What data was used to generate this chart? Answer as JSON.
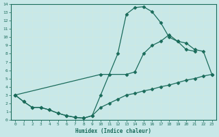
{
  "xlabel": "Humidex (Indice chaleur)",
  "xlim": [
    -0.5,
    23.5
  ],
  "ylim": [
    0,
    14
  ],
  "xticks": [
    0,
    1,
    2,
    3,
    4,
    5,
    6,
    7,
    8,
    9,
    10,
    11,
    12,
    13,
    14,
    15,
    16,
    17,
    18,
    19,
    20,
    21,
    22,
    23
  ],
  "yticks": [
    0,
    1,
    2,
    3,
    4,
    5,
    6,
    7,
    8,
    9,
    10,
    11,
    12,
    13,
    14
  ],
  "bg_color": "#c8e8e8",
  "grid_color": "#b8d8d8",
  "line_color": "#1a6b5a",
  "curve1_x": [
    0,
    1,
    2,
    3,
    4,
    5,
    6,
    7,
    8,
    9,
    10,
    11,
    12,
    13,
    14,
    15,
    16,
    17,
    18,
    19,
    20,
    21
  ],
  "curve1_y": [
    3.0,
    2.2,
    1.5,
    1.5,
    1.2,
    0.8,
    0.5,
    0.3,
    0.2,
    0.5,
    3.0,
    5.5,
    8.0,
    12.8,
    13.6,
    13.7,
    13.1,
    11.8,
    10.0,
    9.5,
    8.5,
    8.3
  ],
  "curve2_x": [
    0,
    1,
    2,
    3,
    4,
    5,
    6,
    7,
    8,
    9,
    10,
    11,
    12,
    13,
    14,
    15,
    16,
    17,
    18,
    19,
    20,
    21,
    22,
    23
  ],
  "curve2_y": [
    3.0,
    2.2,
    1.5,
    1.5,
    1.2,
    0.8,
    0.5,
    0.3,
    0.2,
    0.5,
    1.5,
    2.0,
    2.5,
    3.0,
    3.2,
    3.5,
    3.7,
    4.0,
    4.2,
    4.5,
    4.8,
    5.0,
    5.3,
    5.5
  ],
  "curve3_x": [
    0,
    10,
    13,
    14,
    15,
    16,
    17,
    18,
    19,
    20,
    21,
    22,
    23
  ],
  "curve3_y": [
    3.0,
    5.5,
    5.5,
    5.8,
    8.0,
    9.0,
    9.5,
    10.3,
    9.5,
    9.3,
    8.5,
    8.3,
    5.5
  ]
}
